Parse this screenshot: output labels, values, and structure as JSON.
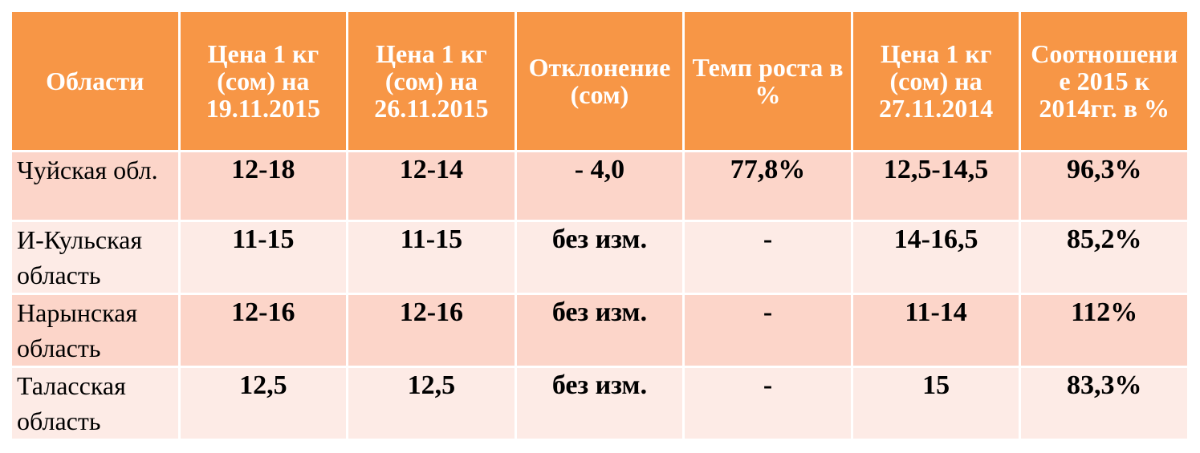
{
  "table": {
    "header": [
      "Области",
      "Цена 1 кг (сом) на 19.11.2015",
      "Цена 1 кг (сом) на 26.11.2015",
      "Отклонение (сом)",
      "Темп роста в %",
      "Цена 1 кг (сом) на 27.11.2014",
      "Соотношение 2015 к 2014гг. в %"
    ],
    "rows": [
      [
        "Чуйская обл.",
        "12-18",
        "12-14",
        "- 4,0",
        "77,8%",
        "12,5-14,5",
        "96,3%"
      ],
      [
        "И-Кульская область",
        "11-15",
        "11-15",
        "без изм.",
        "-",
        "14-16,5",
        "85,2%"
      ],
      [
        "Нарынская область",
        "12-16",
        "12-16",
        "без изм.",
        "-",
        "11-14",
        "112%"
      ],
      [
        "Таласская область",
        "12,5",
        "12,5",
        "без изм.",
        "-",
        "15",
        "83,3%"
      ]
    ]
  }
}
